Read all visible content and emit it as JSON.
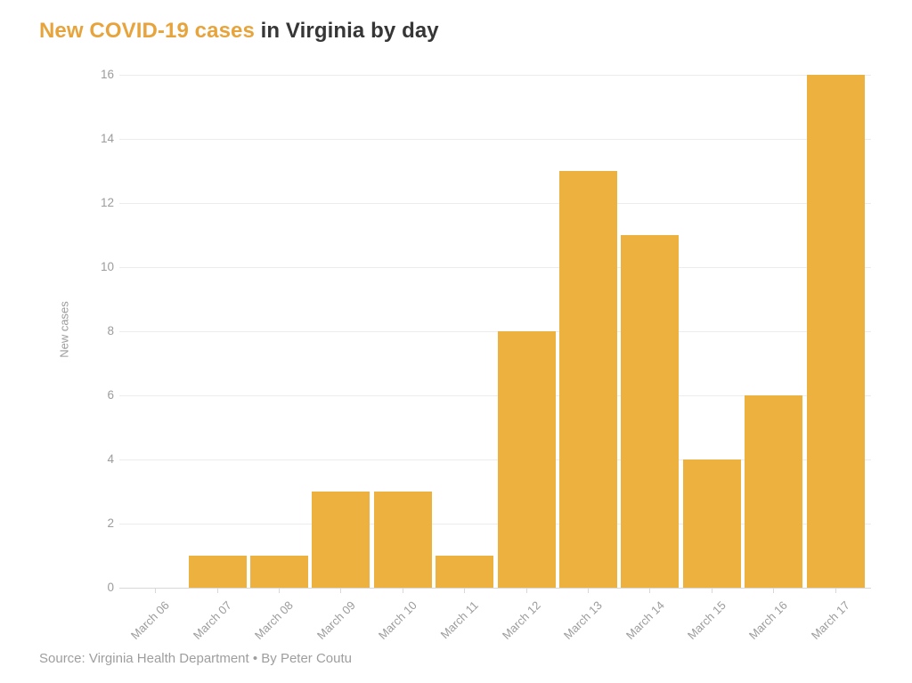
{
  "page": {
    "title_highlight": "New COVID-19 cases",
    "title_rest": "in Virginia by day",
    "source_line": "Source: Virginia Health Department • By Peter Coutu"
  },
  "colors": {
    "background": "#FFFFFF",
    "bar": "#ECB13E",
    "title_highlight": "#E7A43C",
    "title_rest": "#363636",
    "axis_text": "#9C9C9C",
    "source_text": "#9E9E9E",
    "gridline": "#ECECEC",
    "axis_line": "#D8D8D8"
  },
  "chart_data": {
    "type": "bar",
    "title": "New COVID-19 cases in Virginia by day",
    "categories": [
      "March 06",
      "March 07",
      "March 08",
      "March 09",
      "March 10",
      "March 11",
      "March 12",
      "March 13",
      "March 14",
      "March 15",
      "March 16",
      "March 17"
    ],
    "values": [
      0,
      1,
      1,
      3,
      3,
      1,
      8,
      13,
      11,
      4,
      6,
      16
    ],
    "xlabel": "",
    "ylabel": "New cases",
    "ylim": [
      0,
      16
    ],
    "yticks": [
      0,
      2,
      4,
      6,
      8,
      10,
      12,
      14,
      16
    ],
    "grid": true,
    "legend_position": "none",
    "bar_color": "#ECB13E"
  }
}
